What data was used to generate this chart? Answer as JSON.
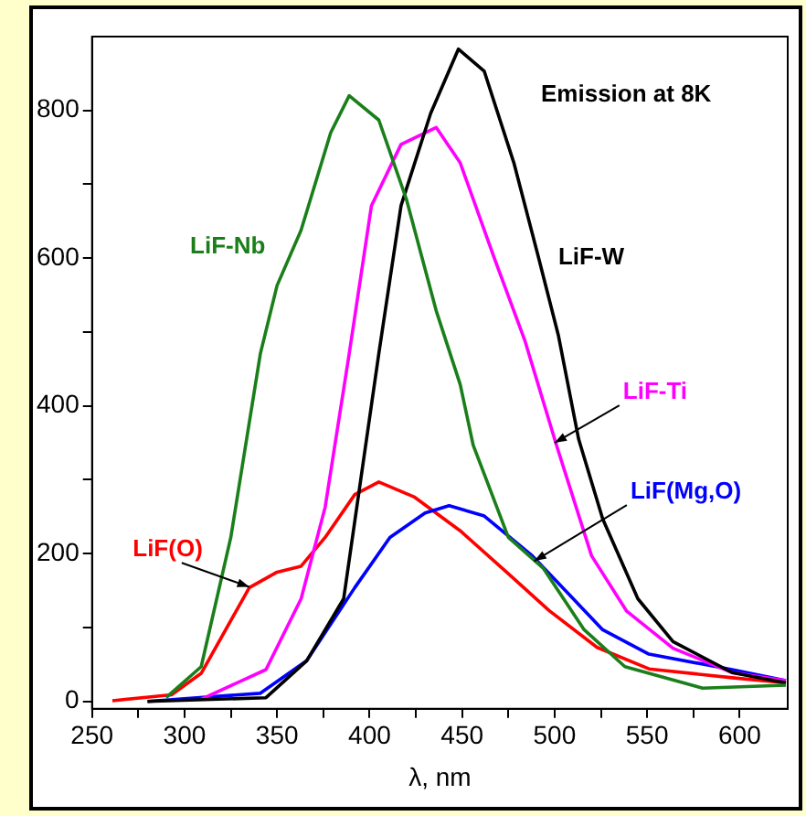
{
  "chart_data": {
    "type": "line",
    "xlabel": "λ, nm",
    "annotations": [
      "Emission at 8K"
    ],
    "xlim": [
      250,
      626
    ],
    "ylim": [
      -10,
      900
    ],
    "xticks": [
      250,
      {
        "value": 275,
        "label": null
      },
      300,
      {
        "value": 325,
        "label": null
      },
      350,
      {
        "value": 375,
        "label": null
      },
      400,
      {
        "value": 425,
        "label": null
      },
      450,
      {
        "value": 475,
        "label": null
      },
      500,
      {
        "value": 525,
        "label": null
      },
      550,
      {
        "value": 575,
        "label": null
      },
      600
    ],
    "yticks": [
      0,
      {
        "value": 100,
        "label": null
      },
      200,
      {
        "value": 300,
        "label": null
      },
      400,
      {
        "value": 500,
        "label": null
      },
      600,
      {
        "value": 700,
        "label": null
      },
      800
    ],
    "legend": false,
    "marker": "none",
    "line_style": "solid",
    "series": [
      {
        "name": "LiF-Nb",
        "color": "#1a7f1a",
        "x": [
          290,
          309,
          325,
          341,
          350,
          363,
          379,
          389,
          405,
          420,
          436,
          449,
          456,
          475,
          494,
          516,
          538,
          580,
          625
        ],
        "values": [
          5,
          47,
          222,
          471,
          563,
          638,
          770,
          820,
          787,
          679,
          529,
          429,
          347,
          222,
          180,
          97,
          47,
          18,
          22
        ]
      },
      {
        "name": "LiF-W",
        "color": "#000000",
        "x": [
          280,
          344,
          366,
          386,
          405,
          417,
          433,
          448,
          462,
          478,
          491,
          502,
          513,
          526,
          545,
          564,
          596,
          625
        ],
        "values": [
          0,
          5,
          55,
          139,
          471,
          671,
          796,
          883,
          853,
          729,
          604,
          496,
          355,
          247,
          139,
          81,
          39,
          25
        ]
      },
      {
        "name": "LiF-Ti",
        "color": "#ff00ff",
        "x": [
          309,
          344,
          363,
          376,
          389,
          401,
          417,
          436,
          449,
          468,
          484,
          501,
          520,
          539,
          564,
          596,
          625
        ],
        "values": [
          3,
          43,
          139,
          263,
          471,
          671,
          754,
          777,
          729,
          596,
          488,
          347,
          197,
          122,
          72,
          39,
          28
        ]
      },
      {
        "name": "LiF(Mg,O)",
        "color": "#0000ff",
        "x": [
          280,
          341,
          366,
          392,
          411,
          430,
          443,
          462,
          488,
          507,
          526,
          551,
          596,
          625
        ],
        "values": [
          0,
          11,
          55,
          154,
          222,
          255,
          265,
          251,
          197,
          147,
          97,
          64,
          43,
          28
        ]
      },
      {
        "name": "LiF(O)",
        "color": "#ff0000",
        "x": [
          261,
          293,
          309,
          335,
          350,
          363,
          376,
          392,
          405,
          424,
          449,
          475,
          497,
          523,
          551,
          596,
          625
        ],
        "values": [
          1,
          9,
          38,
          154,
          175,
          183,
          222,
          280,
          297,
          277,
          231,
          173,
          123,
          73,
          44,
          32,
          25
        ]
      }
    ]
  }
}
